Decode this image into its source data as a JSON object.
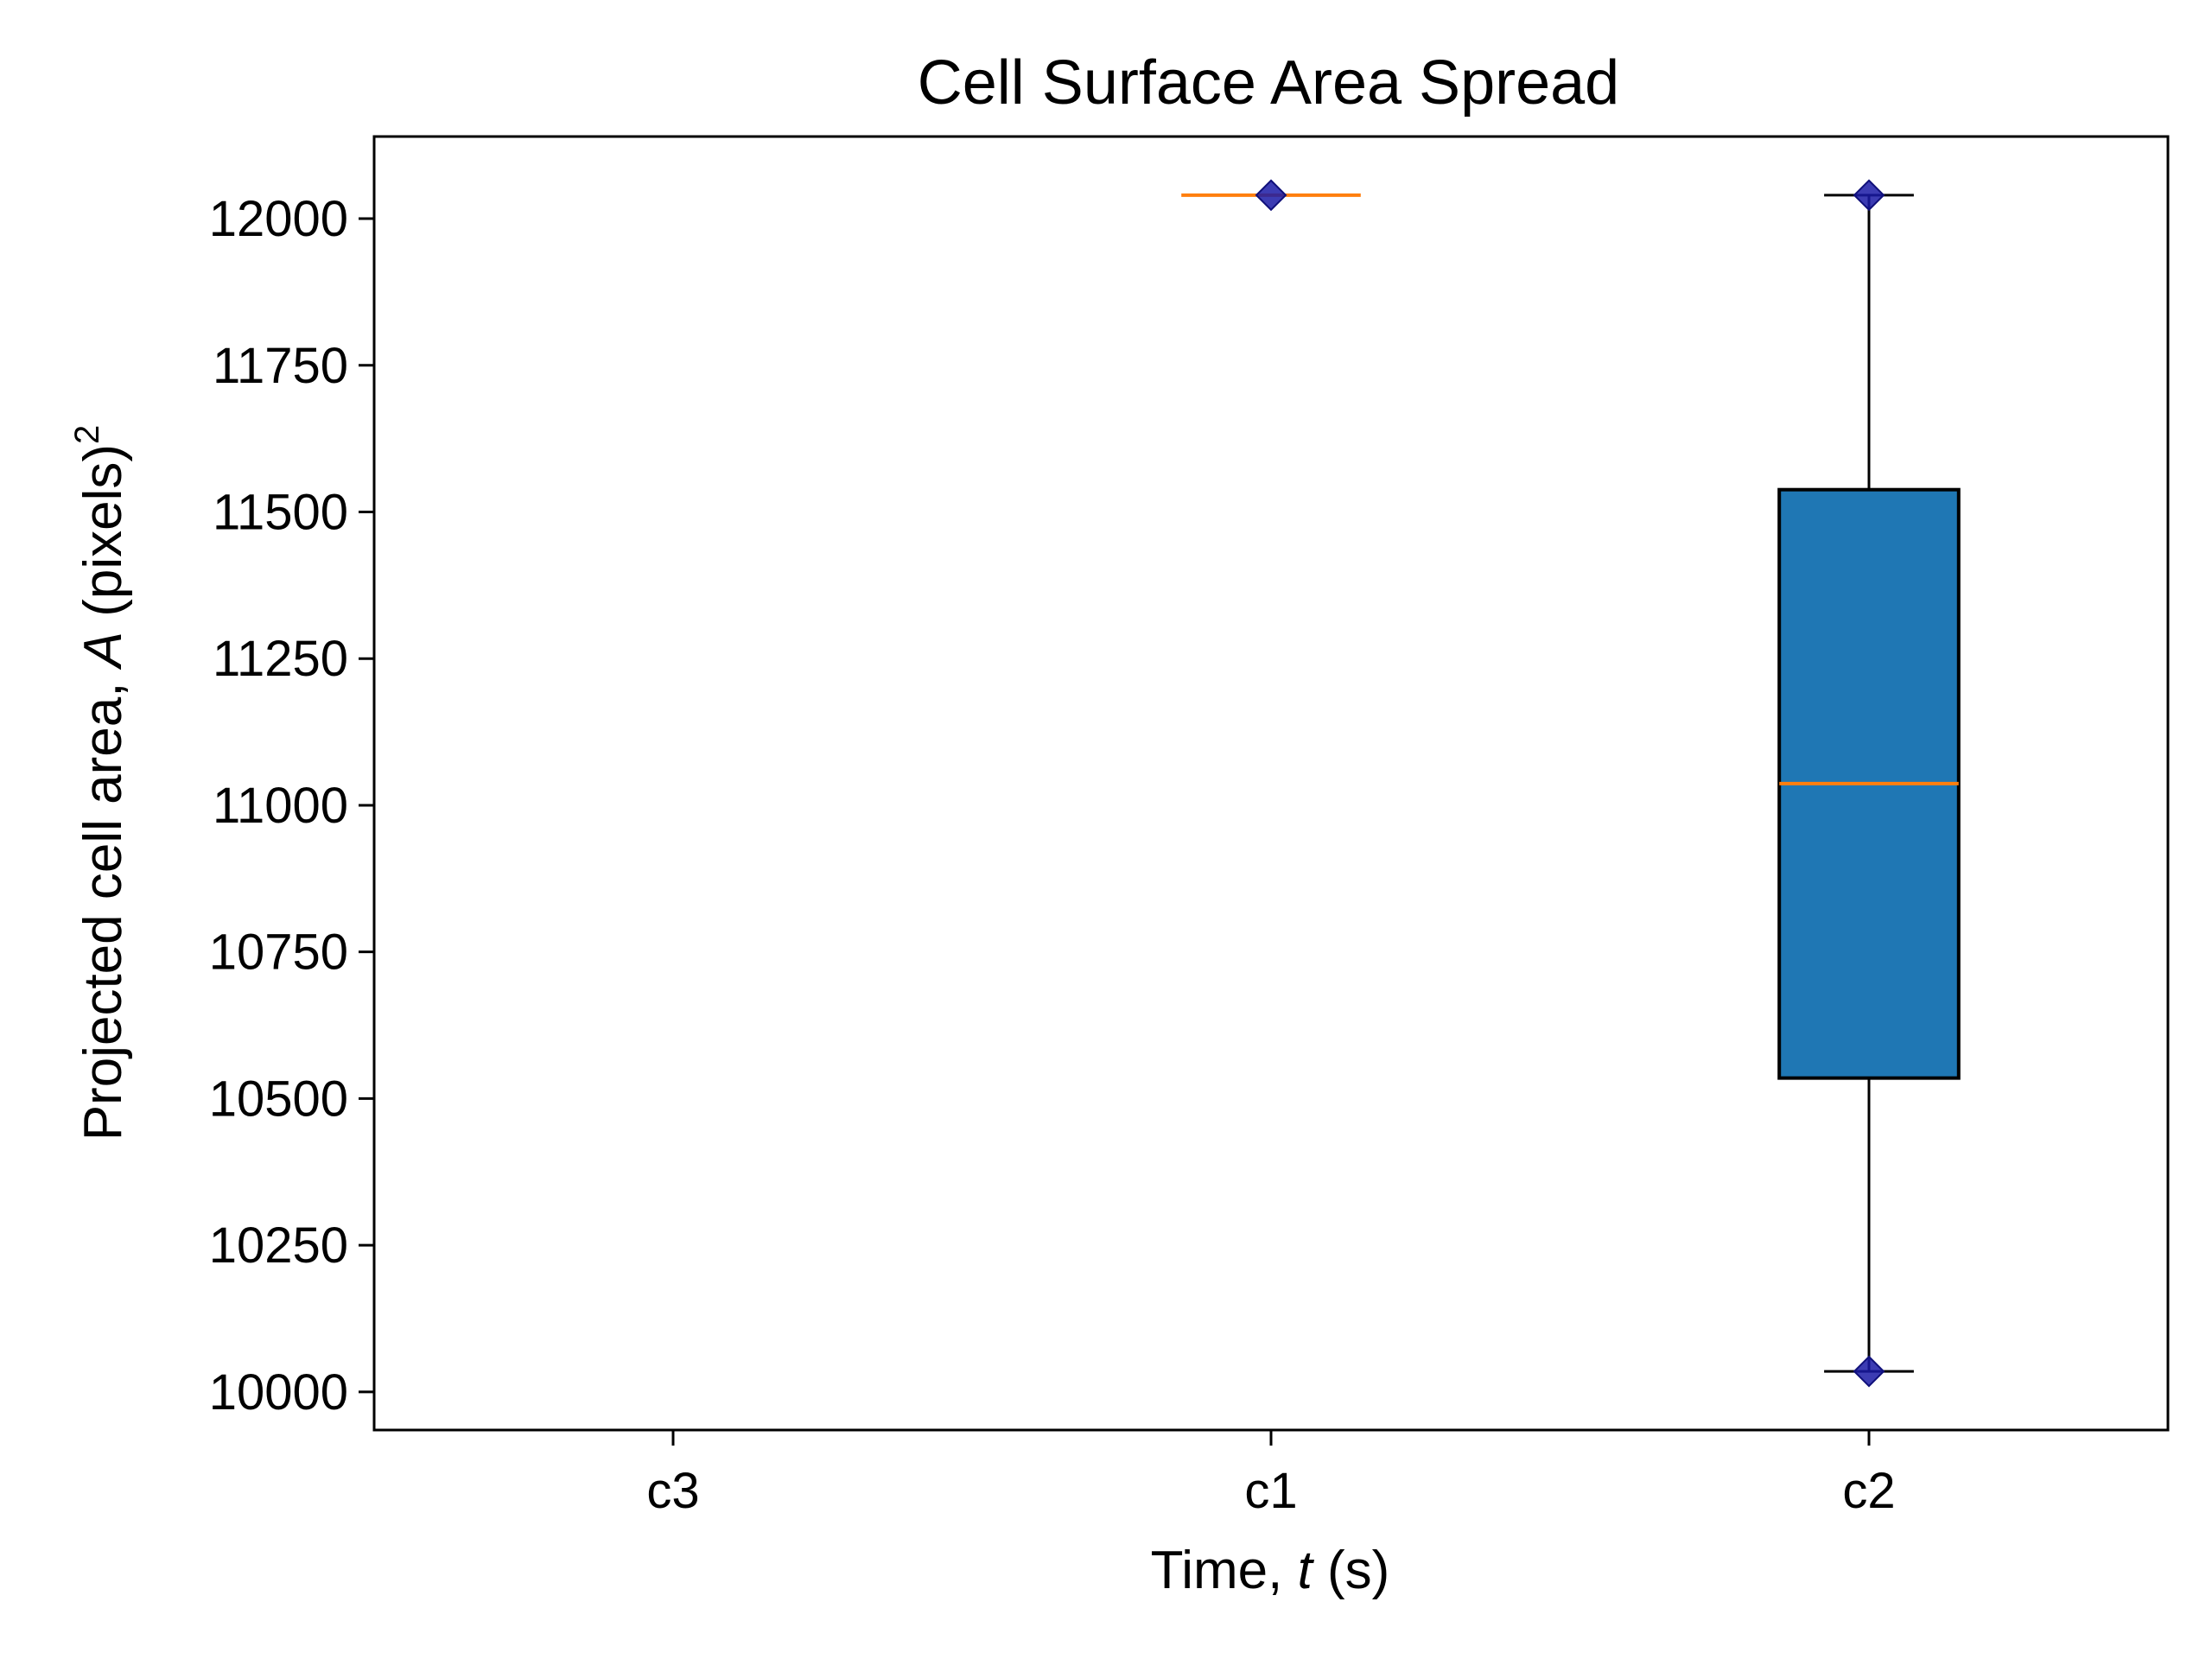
{
  "chart_data": {
    "type": "box",
    "title": "Cell Surface Area Spread",
    "xlabel": {
      "prefix": "Time, ",
      "variable": "t",
      "suffix": " (s)"
    },
    "ylabel": {
      "prefix": "Projected cell area, ",
      "variable": "A",
      "suffix": " (pixels)",
      "superscript": "2"
    },
    "categories": [
      "c3",
      "c1",
      "c2"
    ],
    "ylim": [
      9935,
      12140
    ],
    "yticks": [
      10000,
      10250,
      10500,
      10750,
      11000,
      11250,
      11500,
      11750,
      12000
    ],
    "grid": false,
    "legend": "none",
    "boxes": [
      {
        "category": "c3",
        "empty": true
      },
      {
        "category": "c1",
        "whislo": 12040,
        "q1": 12040,
        "median": 12040,
        "q3": 12040,
        "whishi": 12040,
        "points": [
          12040
        ]
      },
      {
        "category": "c2",
        "whislo": 10035,
        "q1": 10535,
        "median": 11037,
        "q3": 11538,
        "whishi": 12040,
        "points": [
          12040,
          10035
        ]
      }
    ],
    "colors": {
      "box_fill": "#1f77b4",
      "box_edge": "#000000",
      "median": "#ff7f0e",
      "points": "#1a1aa6",
      "axes": "#000000"
    }
  }
}
